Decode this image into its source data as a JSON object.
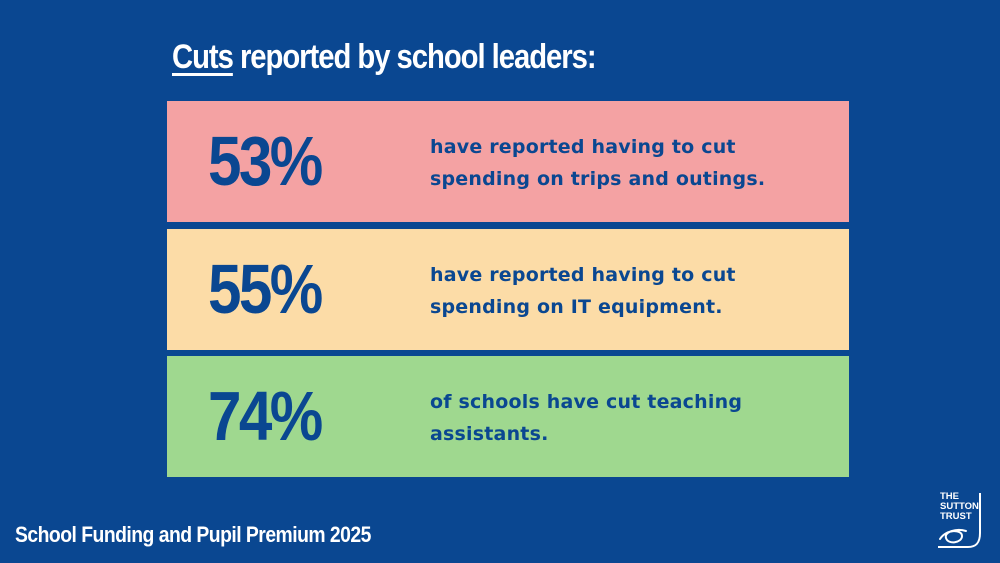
{
  "headline": {
    "emphasis": "Cuts",
    "rest": " reported by school leaders:"
  },
  "stats": [
    {
      "percent": "53%",
      "lines": [
        "have reported having to cut",
        "spending on trips and outings."
      ],
      "color": "#f4a2a3"
    },
    {
      "percent": "55%",
      "lines": [
        "have reported having to cut",
        "spending on IT equipment."
      ],
      "color": "#fcdca7"
    },
    {
      "percent": "74%",
      "lines": [
        "of schools have cut teaching",
        "assistants."
      ],
      "color": "#9fd88f"
    }
  ],
  "footer": {
    "report_title": "School Funding and Pupil Premium 2025"
  },
  "logo": {
    "line1": "THE",
    "line2": "SUTTON",
    "line3": "TRUST"
  },
  "colors": {
    "background": "#0a4791",
    "text_dark": "#0a4791",
    "text_light": "#ffffff"
  }
}
